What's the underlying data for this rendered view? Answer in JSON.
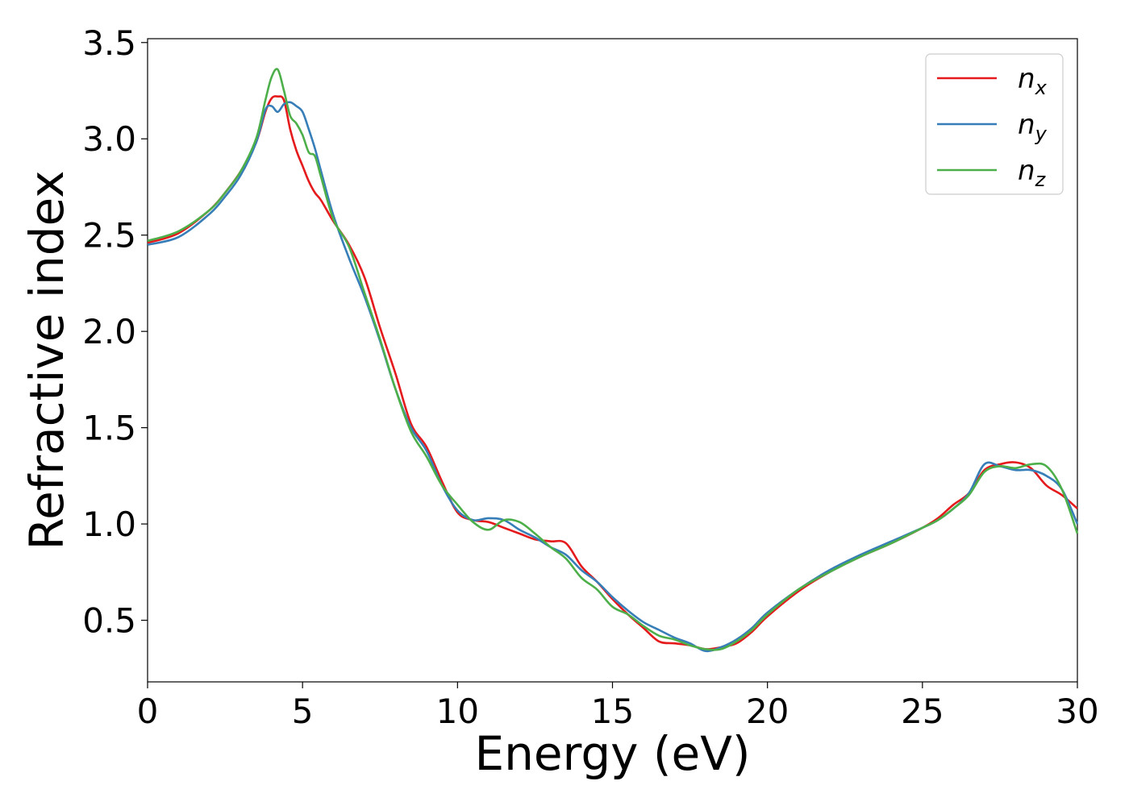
{
  "chart_data": {
    "type": "line",
    "title": "",
    "xlabel": "Energy (eV)",
    "ylabel": "Refractive index",
    "xlim": [
      0,
      30
    ],
    "ylim": [
      0.18,
      3.52
    ],
    "xticks": [
      0,
      5,
      10,
      15,
      20,
      25,
      30
    ],
    "xtick_labels": [
      "0",
      "5",
      "10",
      "15",
      "20",
      "25",
      "30"
    ],
    "yticks": [
      0.5,
      1.0,
      1.5,
      2.0,
      2.5,
      3.0,
      3.5
    ],
    "ytick_labels": [
      "0.5",
      "1.0",
      "1.5",
      "2.0",
      "2.5",
      "3.0",
      "3.5"
    ],
    "grid": false,
    "legend_position": "top-right",
    "series": [
      {
        "name": "n",
        "subscript": "x",
        "color": "#e41a1c",
        "x": [
          0,
          1,
          2,
          2.5,
          3,
          3.5,
          3.8,
          4.0,
          4.2,
          4.4,
          4.6,
          4.8,
          5.0,
          5.2,
          5.4,
          5.6,
          6.0,
          6.5,
          7.0,
          7.5,
          8.0,
          8.5,
          9.0,
          9.5,
          10.0,
          10.5,
          11.0,
          11.5,
          12.0,
          12.5,
          13.0,
          13.5,
          14.0,
          14.5,
          15.0,
          15.5,
          16.0,
          16.5,
          17.0,
          17.5,
          18.0,
          18.5,
          19.0,
          19.5,
          20.0,
          21.0,
          22.0,
          23.0,
          24.0,
          25.0,
          25.5,
          26.0,
          26.5,
          27.0,
          27.5,
          28.0,
          28.5,
          29.0,
          29.5,
          30.0
        ],
        "y": [
          2.46,
          2.51,
          2.63,
          2.72,
          2.83,
          2.98,
          3.14,
          3.21,
          3.22,
          3.2,
          3.05,
          2.94,
          2.86,
          2.78,
          2.72,
          2.68,
          2.57,
          2.45,
          2.28,
          2.02,
          1.78,
          1.52,
          1.4,
          1.22,
          1.06,
          1.02,
          1.01,
          0.98,
          0.95,
          0.92,
          0.91,
          0.9,
          0.78,
          0.7,
          0.61,
          0.53,
          0.46,
          0.39,
          0.38,
          0.37,
          0.35,
          0.36,
          0.38,
          0.44,
          0.52,
          0.65,
          0.75,
          0.83,
          0.9,
          0.98,
          1.03,
          1.1,
          1.16,
          1.28,
          1.31,
          1.32,
          1.29,
          1.2,
          1.15,
          1.08
        ]
      },
      {
        "name": "n",
        "subscript": "y",
        "color": "#377eb8",
        "x": [
          0,
          1,
          2,
          2.5,
          3,
          3.5,
          3.8,
          4.0,
          4.2,
          4.4,
          4.6,
          4.8,
          5.0,
          5.2,
          5.4,
          5.6,
          6.0,
          6.5,
          7.0,
          7.5,
          8.0,
          8.5,
          9.0,
          9.5,
          10.0,
          10.5,
          11.0,
          11.5,
          12.0,
          12.5,
          13.0,
          13.5,
          14.0,
          14.5,
          15.0,
          15.5,
          16.0,
          16.5,
          17.0,
          17.5,
          18.0,
          18.5,
          19.0,
          19.5,
          20.0,
          21.0,
          22.0,
          23.0,
          24.0,
          25.0,
          25.5,
          26.0,
          26.5,
          27.0,
          27.5,
          28.0,
          28.5,
          29.0,
          29.5,
          30.0
        ],
        "y": [
          2.45,
          2.49,
          2.61,
          2.7,
          2.81,
          2.98,
          3.15,
          3.17,
          3.14,
          3.18,
          3.19,
          3.17,
          3.14,
          3.05,
          2.95,
          2.83,
          2.6,
          2.38,
          2.18,
          1.95,
          1.7,
          1.5,
          1.38,
          1.2,
          1.07,
          1.02,
          1.03,
          1.02,
          0.97,
          0.93,
          0.88,
          0.84,
          0.76,
          0.7,
          0.62,
          0.55,
          0.49,
          0.45,
          0.41,
          0.38,
          0.34,
          0.36,
          0.4,
          0.46,
          0.54,
          0.66,
          0.76,
          0.84,
          0.91,
          0.98,
          1.02,
          1.08,
          1.16,
          1.31,
          1.3,
          1.28,
          1.28,
          1.25,
          1.18,
          1.0
        ]
      },
      {
        "name": "n",
        "subscript": "z",
        "color": "#4daf4a",
        "x": [
          0,
          1,
          2,
          2.5,
          3,
          3.5,
          3.8,
          4.0,
          4.2,
          4.4,
          4.6,
          4.8,
          5.0,
          5.2,
          5.4,
          5.6,
          6.0,
          6.5,
          7.0,
          7.5,
          8.0,
          8.5,
          9.0,
          9.5,
          10.0,
          10.5,
          11.0,
          11.5,
          12.0,
          12.5,
          13.0,
          13.5,
          14.0,
          14.5,
          15.0,
          15.5,
          16.0,
          16.5,
          17.0,
          17.5,
          18.0,
          18.5,
          19.0,
          19.5,
          20.0,
          21.0,
          22.0,
          23.0,
          24.0,
          25.0,
          25.5,
          26.0,
          26.5,
          27.0,
          27.5,
          28.0,
          28.5,
          29.0,
          29.5,
          30.0
        ],
        "y": [
          2.47,
          2.52,
          2.63,
          2.72,
          2.83,
          3.0,
          3.2,
          3.32,
          3.36,
          3.25,
          3.12,
          3.08,
          3.02,
          2.93,
          2.91,
          2.8,
          2.58,
          2.44,
          2.2,
          1.96,
          1.7,
          1.48,
          1.35,
          1.2,
          1.1,
          1.01,
          0.97,
          1.02,
          1.01,
          0.95,
          0.88,
          0.82,
          0.72,
          0.66,
          0.57,
          0.53,
          0.47,
          0.42,
          0.4,
          0.37,
          0.35,
          0.35,
          0.39,
          0.45,
          0.53,
          0.66,
          0.75,
          0.83,
          0.9,
          0.98,
          1.02,
          1.08,
          1.15,
          1.27,
          1.3,
          1.29,
          1.31,
          1.3,
          1.18,
          0.95
        ]
      }
    ]
  }
}
